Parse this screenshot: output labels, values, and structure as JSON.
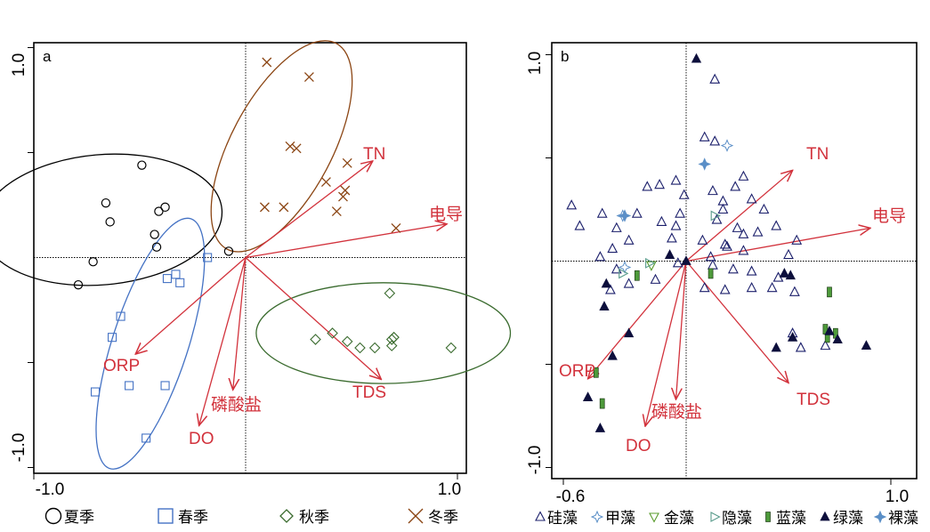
{
  "chart_data": [
    {
      "type": "scatter",
      "panel_label": "a",
      "xlim": [
        -1.0,
        1.0
      ],
      "ylim": [
        -1.0,
        1.0
      ],
      "x_tick_labels": [
        {
          "v": -1.0,
          "label": "-1.0"
        },
        {
          "v": 1.0,
          "label": "1.0"
        }
      ],
      "y_tick_labels": [
        {
          "v": 1.0,
          "label": "1.0"
        },
        {
          "v": -1.0,
          "label": "-1.0"
        }
      ],
      "vectors": [
        {
          "name": "TN",
          "x": 0.6,
          "y": 0.46
        },
        {
          "name": "电导",
          "x": 0.95,
          "y": 0.16
        },
        {
          "name": "ORP",
          "x": -0.52,
          "y": -0.46
        },
        {
          "name": "DO",
          "x": -0.22,
          "y": -0.8
        },
        {
          "name": "磷酸盐",
          "x": -0.06,
          "y": -0.63
        },
        {
          "name": "TDS",
          "x": 0.64,
          "y": -0.58
        }
      ],
      "series": [
        {
          "name": "夏季",
          "marker": "circle",
          "color": "#000000",
          "points": [
            [
              -0.79,
              -0.13
            ],
            [
              -0.72,
              -0.02
            ],
            [
              -0.66,
              0.26
            ],
            [
              -0.49,
              0.44
            ],
            [
              -0.64,
              0.17
            ],
            [
              -0.41,
              0.22
            ],
            [
              -0.38,
              0.24
            ],
            [
              -0.42,
              0.05
            ],
            [
              -0.43,
              0.11
            ],
            [
              -0.08,
              0.03
            ]
          ]
        },
        {
          "name": "春季",
          "marker": "square",
          "color": "#4472c4",
          "points": [
            [
              -0.18,
              0.0
            ],
            [
              -0.33,
              -0.08
            ],
            [
              -0.31,
              -0.12
            ],
            [
              -0.37,
              -0.1
            ],
            [
              -0.59,
              -0.28
            ],
            [
              -0.63,
              -0.38
            ],
            [
              -0.71,
              -0.64
            ],
            [
              -0.55,
              -0.61
            ],
            [
              -0.38,
              -0.61
            ],
            [
              -0.47,
              -0.86
            ]
          ]
        },
        {
          "name": "秋季",
          "marker": "diamond",
          "color": "#3a6b2e",
          "points": [
            [
              0.68,
              -0.17
            ],
            [
              0.33,
              -0.39
            ],
            [
              0.41,
              -0.36
            ],
            [
              0.48,
              -0.4
            ],
            [
              0.54,
              -0.43
            ],
            [
              0.61,
              -0.43
            ],
            [
              0.69,
              -0.39
            ],
            [
              0.7,
              -0.38
            ],
            [
              0.69,
              -0.42
            ],
            [
              0.97,
              -0.43
            ]
          ]
        },
        {
          "name": "冬季",
          "marker": "x",
          "color": "#8b4513",
          "points": [
            [
              0.1,
              0.93
            ],
            [
              0.3,
              0.86
            ],
            [
              0.21,
              0.53
            ],
            [
              0.24,
              0.52
            ],
            [
              0.48,
              0.45
            ],
            [
              0.38,
              0.36
            ],
            [
              0.46,
              0.29
            ],
            [
              0.47,
              0.32
            ],
            [
              0.43,
              0.22
            ],
            [
              0.09,
              0.24
            ],
            [
              0.18,
              0.24
            ],
            [
              0.71,
              0.14
            ]
          ]
        }
      ],
      "ellipses": [
        {
          "season": "夏季",
          "color": "#000000",
          "cx": -0.68,
          "cy": 0.18,
          "rx": 0.57,
          "ry": 0.31,
          "angle_deg": 5
        },
        {
          "season": "春季",
          "color": "#4472c4",
          "cx": -0.45,
          "cy": -0.41,
          "rx": 0.62,
          "ry": 0.18,
          "angle_deg": 72
        },
        {
          "season": "秋季",
          "color": "#3a6b2e",
          "cx": 0.65,
          "cy": -0.36,
          "rx": 0.6,
          "ry": 0.24,
          "angle_deg": 0
        },
        {
          "season": "冬季",
          "color": "#8b4513",
          "cx": 0.17,
          "cy": 0.53,
          "rx": 0.55,
          "ry": 0.24,
          "angle_deg": 62
        }
      ],
      "legend": [
        {
          "label": "夏季",
          "marker": "circle",
          "color": "#000000"
        },
        {
          "label": "春季",
          "marker": "square",
          "color": "#4472c4"
        },
        {
          "label": "秋季",
          "marker": "diamond",
          "color": "#3a6b2e"
        },
        {
          "label": "冬季",
          "marker": "x",
          "color": "#8b4513"
        }
      ]
    },
    {
      "type": "scatter",
      "panel_label": "b",
      "xlim": [
        -0.6,
        1.0
      ],
      "ylim": [
        -1.0,
        1.0
      ],
      "x_tick_labels": [
        {
          "v": -0.6,
          "label": "-0.6"
        },
        {
          "v": 1.0,
          "label": "1.0"
        }
      ],
      "y_tick_labels": [
        {
          "v": 1.0,
          "label": "1.0"
        },
        {
          "v": -1.0,
          "label": "-1.0"
        }
      ],
      "vectors": [
        {
          "name": "TN",
          "x": 0.52,
          "y": 0.44
        },
        {
          "name": "电导",
          "x": 0.9,
          "y": 0.16
        },
        {
          "name": "ORP",
          "x": -0.48,
          "y": -0.57
        },
        {
          "name": "DO",
          "x": -0.2,
          "y": -0.8
        },
        {
          "name": "磷酸盐",
          "x": -0.05,
          "y": -0.67
        },
        {
          "name": "TDS",
          "x": 0.5,
          "y": -0.59
        }
      ],
      "series": [
        {
          "name": "硅藻",
          "marker": "triangle-up",
          "color": "#1b1f6b",
          "points": [
            [
              -0.56,
              0.27
            ],
            [
              -0.52,
              0.17
            ],
            [
              -0.34,
              0.16
            ],
            [
              -0.41,
              0.23
            ],
            [
              -0.24,
              0.23
            ],
            [
              -0.19,
              0.36
            ],
            [
              -0.13,
              0.37
            ],
            [
              -0.05,
              0.39
            ],
            [
              -0.01,
              0.32
            ],
            [
              -0.03,
              0.23
            ],
            [
              -0.05,
              0.17
            ],
            [
              -0.07,
              0.11
            ],
            [
              -0.12,
              0.19
            ],
            [
              -0.28,
              0.1
            ],
            [
              -0.36,
              0.06
            ],
            [
              -0.42,
              0.02
            ],
            [
              -0.34,
              -0.04
            ],
            [
              -0.37,
              -0.14
            ],
            [
              -0.28,
              -0.11
            ],
            [
              -0.15,
              -0.09
            ],
            [
              -0.04,
              -0.01
            ],
            [
              0.08,
              0.1
            ],
            [
              0.15,
              0.2
            ],
            [
              0.18,
              0.25
            ],
            [
              0.24,
              0.36
            ],
            [
              0.28,
              0.41
            ],
            [
              0.38,
              0.25
            ],
            [
              0.35,
              0.14
            ],
            [
              0.25,
              0.16
            ],
            [
              0.19,
              0.08
            ],
            [
              0.12,
              0.02
            ],
            [
              0.2,
              0.07
            ],
            [
              0.28,
              0.05
            ],
            [
              0.44,
              0.17
            ],
            [
              0.54,
              0.1
            ],
            [
              0.5,
              0.03
            ],
            [
              0.45,
              -0.08
            ],
            [
              0.42,
              -0.13
            ],
            [
              0.23,
              -0.04
            ],
            [
              0.19,
              -0.14
            ],
            [
              0.09,
              -0.13
            ],
            [
              0.13,
              0.34
            ],
            [
              0.13,
              -0.02
            ],
            [
              0.32,
              -0.05
            ],
            [
              0.32,
              -0.13
            ],
            [
              0.18,
              0.29
            ],
            [
              0.32,
              0.3
            ],
            [
              0.53,
              -0.15
            ],
            [
              0.52,
              -0.35
            ],
            [
              0.56,
              -0.42
            ],
            [
              0.14,
              0.88
            ],
            [
              0.09,
              0.6
            ],
            [
              0.14,
              0.58
            ],
            [
              0.68,
              -0.41
            ],
            [
              0.28,
              0.13
            ]
          ]
        },
        {
          "name": "甲藻",
          "marker": "star4-open",
          "color": "#5b8fc7",
          "points": [
            [
              -0.3,
              -0.03
            ],
            [
              0.2,
              0.56
            ],
            [
              -0.31,
              0.22
            ]
          ]
        },
        {
          "name": "金藻",
          "marker": "triangle-down",
          "color": "#5a9c2e",
          "points": [
            [
              -0.17,
              -0.02
            ]
          ]
        },
        {
          "name": "隐藻",
          "marker": "triangle-right",
          "color": "#5a9c8c",
          "points": [
            [
              0.14,
              0.22
            ],
            [
              -0.18,
              -0.01
            ],
            [
              -0.31,
              -0.06
            ]
          ]
        },
        {
          "name": "蓝藻",
          "marker": "bar",
          "color": "#4d9a3a",
          "points": [
            [
              -0.24,
              -0.07
            ],
            [
              0.12,
              -0.06
            ],
            [
              0.69,
              -0.37
            ],
            [
              0.68,
              -0.33
            ],
            [
              0.73,
              -0.35
            ],
            [
              0.7,
              -0.15
            ],
            [
              -0.44,
              -0.54
            ],
            [
              -0.41,
              -0.69
            ]
          ]
        },
        {
          "name": "绿藻",
          "marker": "triangle-up-filled",
          "color": "#0d0f3c",
          "points": [
            [
              0.05,
              0.98
            ],
            [
              0.0,
              0.0
            ],
            [
              -0.08,
              0.03
            ],
            [
              -0.4,
              -0.22
            ],
            [
              -0.28,
              -0.35
            ],
            [
              -0.36,
              -0.46
            ],
            [
              -0.48,
              -0.66
            ],
            [
              -0.42,
              -0.81
            ],
            [
              0.44,
              -0.42
            ],
            [
              0.52,
              -0.37
            ],
            [
              0.7,
              -0.34
            ],
            [
              0.74,
              -0.38
            ],
            [
              0.88,
              -0.41
            ],
            [
              0.48,
              -0.06
            ],
            [
              0.51,
              -0.07
            ],
            [
              -0.39,
              -0.11
            ]
          ]
        },
        {
          "name": "裸藻",
          "marker": "star4-filled",
          "color": "#5b8fc7",
          "points": [
            [
              -0.3,
              0.22
            ],
            [
              0.09,
              0.47
            ]
          ]
        }
      ],
      "legend": [
        {
          "label": "硅藻",
          "marker": "triangle-up",
          "color": "#1b1f6b"
        },
        {
          "label": "甲藻",
          "marker": "star4-open",
          "color": "#5b8fc7"
        },
        {
          "label": "金藻",
          "marker": "triangle-down",
          "color": "#5a9c2e"
        },
        {
          "label": "隐藻",
          "marker": "triangle-right",
          "color": "#5a9c8c"
        },
        {
          "label": "蓝藻",
          "marker": "bar",
          "color": "#4d9a3a"
        },
        {
          "label": "绿藻",
          "marker": "triangle-up-filled",
          "color": "#0d0f3c"
        },
        {
          "label": "裸藻",
          "marker": "star4-filled",
          "color": "#5b8fc7"
        }
      ]
    }
  ],
  "colors": {
    "vector": "#d2323c",
    "axis": "#000000"
  }
}
